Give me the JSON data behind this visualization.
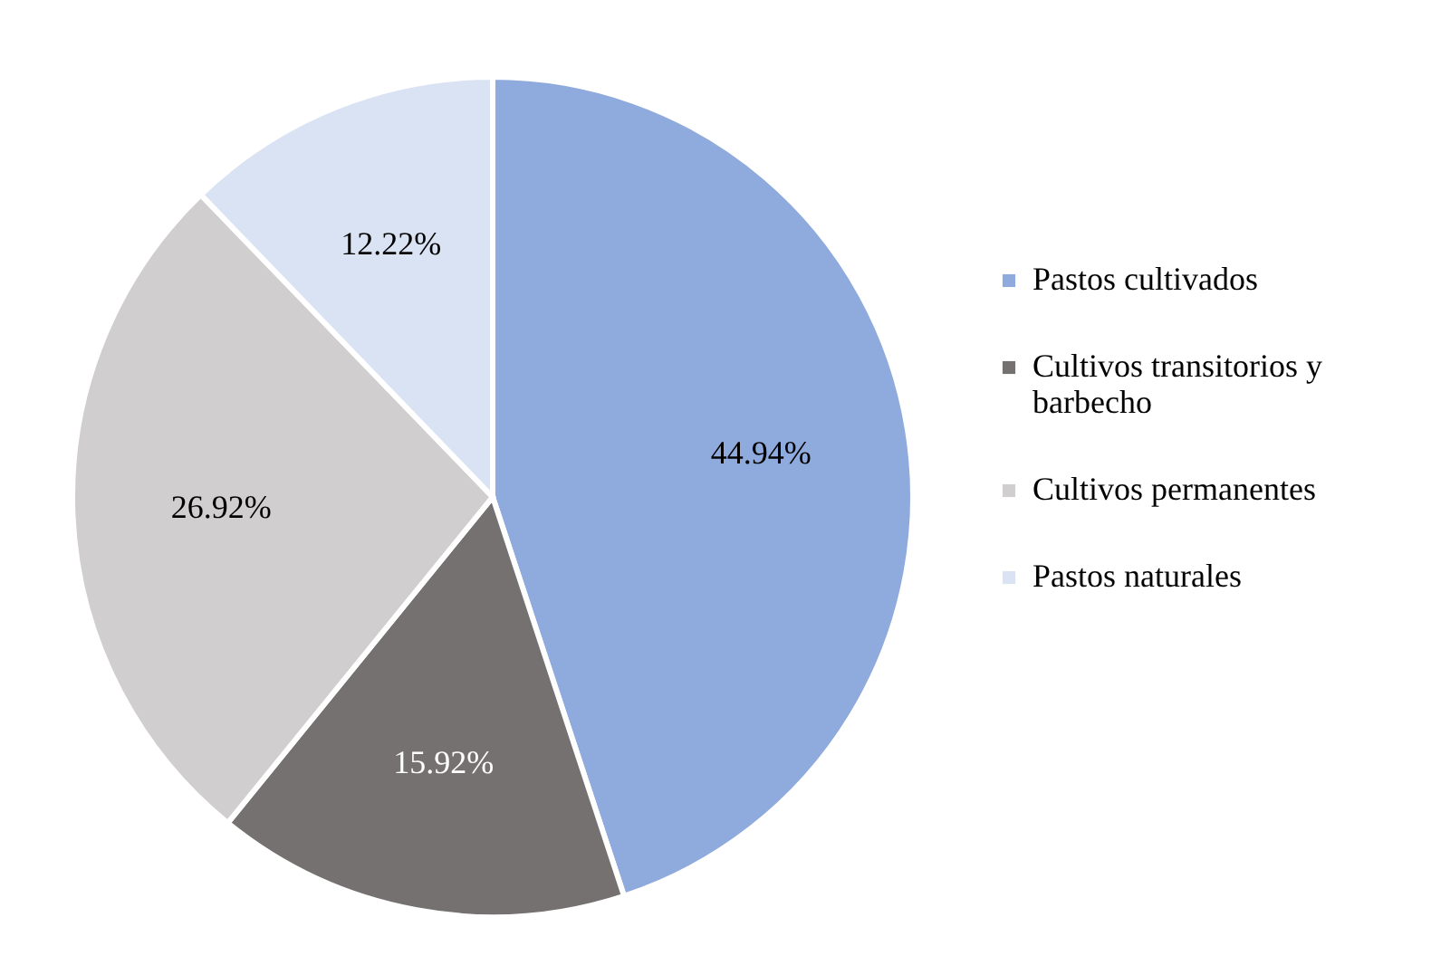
{
  "chart_data": {
    "type": "pie",
    "categories": [
      "Pastos cultivados",
      "Cultivos transitorios y barbecho",
      "Cultivos permanentes",
      "Pastos naturales"
    ],
    "values": [
      44.94,
      15.92,
      26.92,
      12.22
    ],
    "colors": [
      "#8faadc",
      "#767171",
      "#d0cece",
      "#dae3f3"
    ],
    "value_labels": [
      "44.94%",
      "15.92%",
      "26.92%",
      "12.22%"
    ],
    "legend": "right"
  }
}
